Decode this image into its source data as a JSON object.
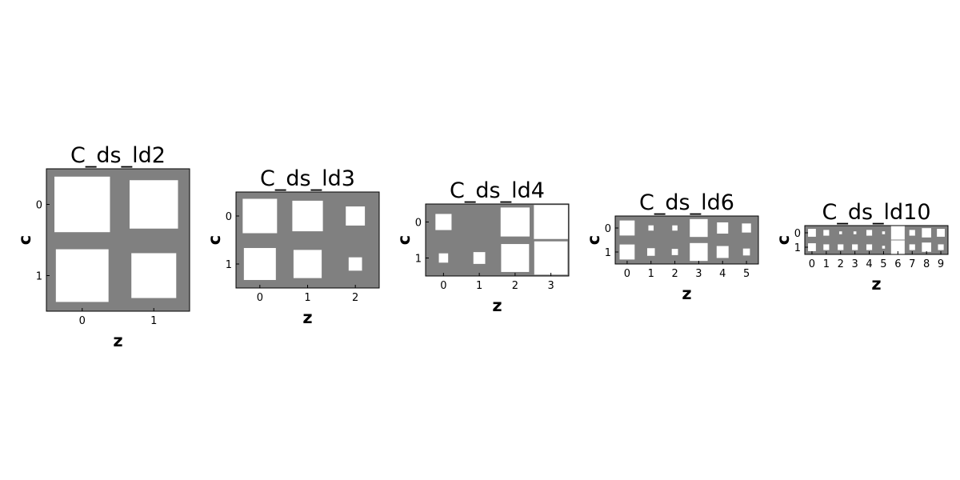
{
  "chart_data": [
    {
      "type": "hinton",
      "title": "C_ds_ld2",
      "xlabel": "z",
      "ylabel": "c",
      "xticks": [
        "0",
        "1"
      ],
      "yticks": [
        "0",
        "1"
      ],
      "background": "#808080",
      "positive_color": "#ffffff",
      "values": [
        [
          0.78,
          0.68
        ],
        [
          0.74,
          0.63
        ]
      ]
    },
    {
      "type": "hinton",
      "title": "C_ds_ld3",
      "xlabel": "z",
      "ylabel": "c",
      "xticks": [
        "0",
        "1",
        "2"
      ],
      "yticks": [
        "0",
        "1"
      ],
      "background": "#808080",
      "positive_color": "#ffffff",
      "values": [
        [
          0.72,
          0.64,
          0.4
        ],
        [
          0.67,
          0.59,
          0.28
        ]
      ]
    },
    {
      "type": "hinton",
      "title": "C_ds_ld4",
      "xlabel": "z",
      "ylabel": "c",
      "xticks": [
        "0",
        "1",
        "2",
        "3"
      ],
      "yticks": [
        "0",
        "1"
      ],
      "background": "#808080",
      "positive_color": "#ffffff",
      "values": [
        [
          0.45,
          0.0,
          0.81,
          0.95
        ],
        [
          0.26,
          0.33,
          0.78,
          0.93
        ]
      ]
    },
    {
      "type": "hinton",
      "title": "C_ds_ld6",
      "xlabel": "z",
      "ylabel": "c",
      "xticks": [
        "0",
        "1",
        "2",
        "3",
        "4",
        "5"
      ],
      "yticks": [
        "0",
        "1"
      ],
      "background": "#808080",
      "positive_color": "#ffffff",
      "values": [
        [
          0.63,
          0.22,
          0.22,
          0.75,
          0.47,
          0.38
        ],
        [
          0.63,
          0.32,
          0.26,
          0.75,
          0.5,
          0.29
        ]
      ]
    },
    {
      "type": "hinton",
      "title": "C_ds_ld10",
      "xlabel": "z",
      "ylabel": "c",
      "xticks": [
        "0",
        "1",
        "2",
        "3",
        "4",
        "5",
        "6",
        "7",
        "8",
        "9"
      ],
      "yticks": [
        "0",
        "1"
      ],
      "background": "#808080",
      "positive_color": "#ffffff",
      "values": [
        [
          0.55,
          0.4,
          0.2,
          0.2,
          0.4,
          0.2,
          0.95,
          0.4,
          0.65,
          0.55
        ],
        [
          0.55,
          0.4,
          0.4,
          0.4,
          0.4,
          0.2,
          0.95,
          0.4,
          0.65,
          0.4
        ]
      ]
    }
  ]
}
